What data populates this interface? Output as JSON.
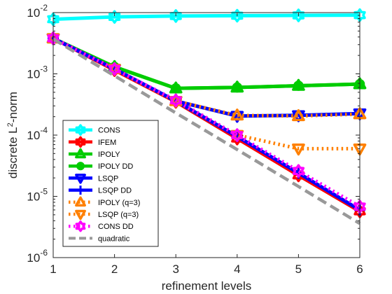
{
  "chart_data": {
    "type": "line",
    "title": "",
    "xlabel": "refinement levels",
    "ylabel": "discrete L",
    "ylabel_sup": "2",
    "ylabel_suffix": "-norm",
    "xlim": [
      1,
      6
    ],
    "ylim": [
      1e-06,
      0.01
    ],
    "yscale": "log",
    "grid": false,
    "legend_position": "bottom-left",
    "x_ticks": [
      "1",
      "2",
      "3",
      "4",
      "5",
      "6"
    ],
    "y_ticks": [
      {
        "base": "10",
        "exp": "-6"
      },
      {
        "base": "10",
        "exp": "-5"
      },
      {
        "base": "10",
        "exp": "-4"
      },
      {
        "base": "10",
        "exp": "-3"
      },
      {
        "base": "10",
        "exp": "-2"
      }
    ],
    "x": [
      1,
      2,
      3,
      4,
      5,
      6
    ],
    "series": [
      {
        "name": "CONS",
        "color": "#00ffff",
        "style": "solid",
        "marker": "hexagram",
        "values": [
          0.0078,
          0.0085,
          0.0088,
          0.0089,
          0.009,
          0.0091
        ]
      },
      {
        "name": "IFEM",
        "color": "#ff0000",
        "style": "solid",
        "marker": "hexagram",
        "values": [
          0.0038,
          0.00115,
          0.00035,
          8.8e-05,
          2.2e-05,
          5.7e-06
        ]
      },
      {
        "name": "IPOLY",
        "color": "#00cc00",
        "style": "solid",
        "marker": "triangle-up",
        "values": [
          0.0038,
          0.0013,
          0.00058,
          0.0006,
          0.00064,
          0.00068
        ]
      },
      {
        "name": "IPOLY DD",
        "color": "#00cc00",
        "style": "solid",
        "marker": "circle",
        "values": [
          0.0038,
          0.0013,
          0.00058,
          0.0006,
          0.00064,
          0.00068
        ]
      },
      {
        "name": "LSQP",
        "color": "#0000ff",
        "style": "solid",
        "marker": "triangle-down",
        "values": [
          0.0038,
          0.0012,
          0.00036,
          0.000205,
          0.00021,
          0.000225
        ]
      },
      {
        "name": "LSQP DD",
        "color": "#0000ff",
        "style": "solid",
        "marker": "plus",
        "values": [
          0.0038,
          0.0012,
          0.00036,
          9.5e-05,
          2.4e-05,
          6e-06
        ]
      },
      {
        "name": "IPOLY (q=3)",
        "color": "#ff8000",
        "style": "dotted",
        "marker": "triangle-up",
        "values": [
          0.0038,
          0.0012,
          0.00036,
          0.00021,
          0.000205,
          0.00022
        ]
      },
      {
        "name": "LSQP (q=3)",
        "color": "#ff8000",
        "style": "dotted",
        "marker": "triangle-down",
        "values": [
          0.0038,
          0.0012,
          0.00036,
          0.0001,
          6e-05,
          6e-05
        ]
      },
      {
        "name": "CONS DD",
        "color": "#ff00ff",
        "style": "dotted",
        "marker": "hexagram",
        "values": [
          0.0038,
          0.0012,
          0.00037,
          0.0001,
          2.6e-05,
          6.8e-06
        ]
      },
      {
        "name": "quadratic",
        "color": "#999999",
        "style": "dashed",
        "marker": "none",
        "values": [
          0.0037,
          0.00093,
          0.00023,
          5.8e-05,
          1.45e-05,
          3.6e-06
        ]
      }
    ]
  }
}
